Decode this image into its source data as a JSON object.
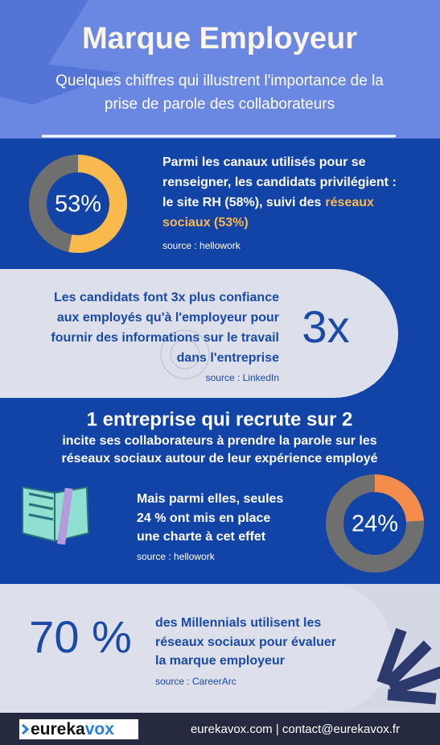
{
  "header": {
    "title": "Marque Employeur",
    "subtitle_lines": [
      "Quelques chiffres qui illustrent l'importance de la",
      "prise de parole des collaborateurs"
    ]
  },
  "sections": [
    {
      "donut": {
        "value": 53,
        "label": "53%"
      },
      "text_lines": [
        "Parmi les canaux utilisés pour se",
        "renseigner, les candidats privilégient :",
        "le site RH (58%), suivi des"
      ],
      "highlight_lines": [
        "réseaux",
        "sociaux (53%)"
      ],
      "source": "source : hellowork"
    },
    {
      "text_lines": [
        "Les candidats font 3x plus confiance",
        "aux employés qu'à l'employeur pour",
        "fournir des informations sur le travail",
        "dans l'entreprise"
      ],
      "figure": "3x",
      "source": "source : LinkedIn"
    },
    {
      "heading": "1 entreprise qui recrute sur 2",
      "subheading_lines": [
        "incite ses collaborateurs à prendre la parole sur les",
        "réseaux sociaux autour de leur expérience employé"
      ],
      "text_lines": [
        "Mais parmi elles, seules",
        "24 % ont mis en place",
        "une charte à cet effet"
      ],
      "source": "source : hellowork",
      "donut": {
        "value": 24,
        "label": "24%"
      }
    },
    {
      "figure": "70 %",
      "text_lines": [
        "des Millennials utilisent les",
        "réseaux sociaux pour évaluer",
        "la marque employeur"
      ],
      "source": "source : CareerArc"
    }
  ],
  "footer": {
    "logo": {
      "part1": "eureka",
      "part2": "vox"
    },
    "contact": "eurekavox.com | contact@eurekavox.fr"
  }
}
